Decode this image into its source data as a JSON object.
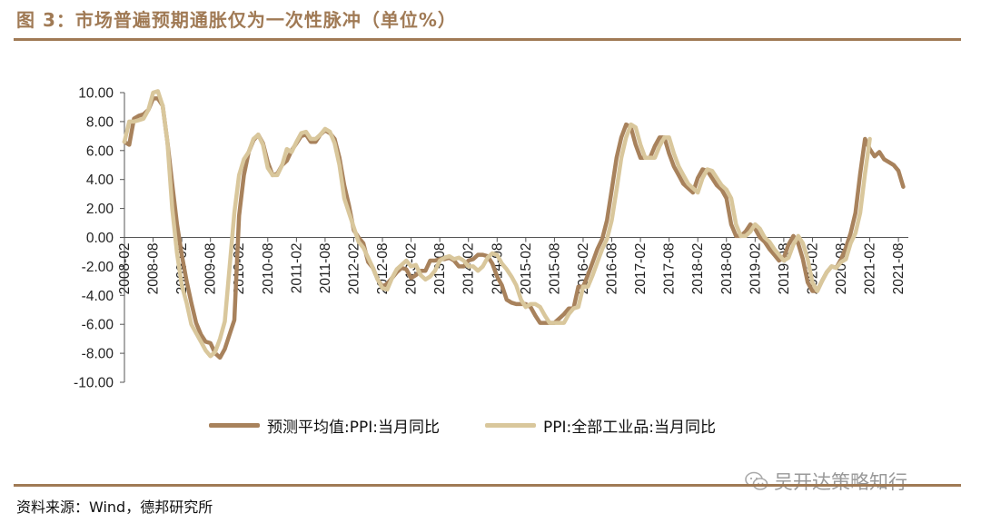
{
  "title": "图 3：市场普遍预期通胀仅为一次性脉冲（单位%）",
  "source": "资料来源：Wind，德邦研究所",
  "watermark": "吴开达策略知行",
  "colors": {
    "accent": "#a07a55",
    "series_forecast": "#a8825c",
    "series_ppi": "#d9c79c"
  },
  "chart_data": {
    "type": "line",
    "title": "",
    "xlabel": "",
    "ylabel": "",
    "ylim": [
      -10,
      10
    ],
    "yticks": [
      "10.00",
      "8.00",
      "6.00",
      "4.00",
      "2.00",
      "0.00",
      "-2.00",
      "-4.00",
      "-6.00",
      "-8.00",
      "-10.00"
    ],
    "xticks": [
      "2008-02",
      "2008-08",
      "2009-02",
      "2009-08",
      "2010-02",
      "2010-08",
      "2011-02",
      "2011-08",
      "2012-02",
      "2012-08",
      "2013-02",
      "2013-08",
      "2014-02",
      "2014-08",
      "2015-02",
      "2015-08",
      "2016-02",
      "2016-08",
      "2017-02",
      "2017-08",
      "2018-02",
      "2018-08",
      "2019-02",
      "2019-08",
      "2020-02",
      "2020-08",
      "2021-02",
      "2021-08"
    ],
    "x_start": "2008-02",
    "series": [
      {
        "name": "预测平均值:PPI:当月同比",
        "values": [
          6.6,
          6.4,
          8.2,
          8.4,
          8.5,
          8.8,
          9.6,
          9.6,
          9.1,
          6.6,
          3.7,
          0.9,
          -1.2,
          -3.0,
          -4.5,
          -5.9,
          -6.7,
          -7.2,
          -7.3,
          -8.0,
          -8.3,
          -7.7,
          -6.7,
          -5.7,
          1.5,
          4.3,
          5.9,
          6.7,
          7.1,
          6.5,
          5.2,
          4.3,
          4.4,
          5.0,
          5.3,
          6.0,
          6.5,
          7.0,
          7.1,
          6.6,
          6.6,
          7.1,
          7.4,
          7.2,
          6.8,
          5.5,
          3.6,
          2.2,
          0.5,
          0.0,
          -0.4,
          -1.7,
          -2.1,
          -2.9,
          -3.4,
          -3.2,
          -2.8,
          -2.4,
          -2.1,
          -2.2,
          -2.8,
          -2.6,
          -2.3,
          -2.3,
          -1.6,
          -1.6,
          -1.5,
          -1.5,
          -1.4,
          -1.6,
          -2.0,
          -2.0,
          -1.6,
          -1.5,
          -1.2,
          -1.2,
          -1.3,
          -1.8,
          -2.7,
          -3.3,
          -4.3,
          -4.5,
          -4.6,
          -4.6,
          -4.6,
          -4.8,
          -5.4,
          -5.9,
          -5.9,
          -5.9,
          -5.9,
          -5.6,
          -5.3,
          -4.9,
          -4.9,
          -3.4,
          -3.4,
          -2.6,
          -1.7,
          -0.8,
          -0.1,
          1.2,
          3.3,
          5.5,
          6.9,
          7.8,
          7.6,
          6.4,
          5.5,
          5.5,
          5.5,
          6.3,
          6.9,
          6.9,
          5.8,
          4.9,
          4.3,
          3.7,
          3.4,
          3.1,
          4.1,
          4.7,
          4.6,
          4.1,
          3.6,
          3.3,
          2.7,
          0.9,
          0.1,
          0.1,
          0.4,
          0.9,
          0.6,
          0.0,
          -0.3,
          -0.8,
          -1.2,
          -1.6,
          -1.4,
          -0.5,
          0.1,
          -0.4,
          -1.5,
          -3.1,
          -3.7,
          -3.7,
          -3.0,
          -2.4,
          -2.0,
          -2.1,
          -1.5,
          -0.7,
          0.3,
          1.7,
          4.4,
          6.8,
          6.1,
          5.6,
          5.9,
          5.4,
          5.2,
          5.0,
          4.6,
          3.5
        ]
      },
      {
        "name": "PPI:全部工业品:当月同比",
        "values": [
          6.6,
          8.0,
          8.0,
          8.1,
          8.2,
          8.8,
          10.0,
          10.1,
          9.1,
          6.6,
          2.0,
          -1.1,
          -3.3,
          -4.5,
          -6.0,
          -6.6,
          -7.2,
          -7.8,
          -8.2,
          -7.9,
          -7.0,
          -5.8,
          -2.1,
          1.7,
          4.3,
          5.4,
          5.9,
          6.8,
          7.1,
          6.4,
          4.8,
          4.3,
          4.3,
          5.0,
          6.1,
          5.9,
          6.6,
          7.2,
          7.3,
          6.8,
          6.8,
          7.1,
          7.5,
          7.3,
          6.5,
          5.0,
          2.7,
          1.7,
          0.7,
          -0.3,
          -0.7,
          -1.4,
          -2.1,
          -2.9,
          -3.5,
          -3.6,
          -2.8,
          -2.2,
          -1.9,
          -1.6,
          -2.0,
          -1.9,
          -2.6,
          -2.9,
          -2.7,
          -2.3,
          -1.6,
          -1.4,
          -1.3,
          -1.5,
          -1.4,
          -1.6,
          -2.0,
          -2.0,
          -2.3,
          -2.0,
          -1.4,
          -1.1,
          -1.2,
          -1.8,
          -2.2,
          -2.7,
          -3.3,
          -4.3,
          -4.8,
          -4.6,
          -4.6,
          -4.8,
          -5.4,
          -5.9,
          -5.9,
          -5.9,
          -5.9,
          -5.3,
          -4.9,
          -4.8,
          -3.4,
          -3.4,
          -2.6,
          -1.7,
          -0.8,
          -0.1,
          1.2,
          3.3,
          5.5,
          6.9,
          7.8,
          7.6,
          6.4,
          5.5,
          5.5,
          5.5,
          6.3,
          6.9,
          6.9,
          5.8,
          4.9,
          4.3,
          3.7,
          3.4,
          3.1,
          4.1,
          4.7,
          4.6,
          4.1,
          3.6,
          3.3,
          2.7,
          0.9,
          0.1,
          0.1,
          0.4,
          0.9,
          0.6,
          0.0,
          -0.3,
          -0.8,
          -1.2,
          -1.6,
          -1.4,
          -0.5,
          0.1,
          -0.4,
          -1.5,
          -3.1,
          -3.7,
          -3.0,
          -2.4,
          -2.0,
          -2.1,
          -1.7,
          -1.5,
          -0.4,
          0.3,
          1.7,
          4.4,
          6.8
        ]
      }
    ]
  }
}
